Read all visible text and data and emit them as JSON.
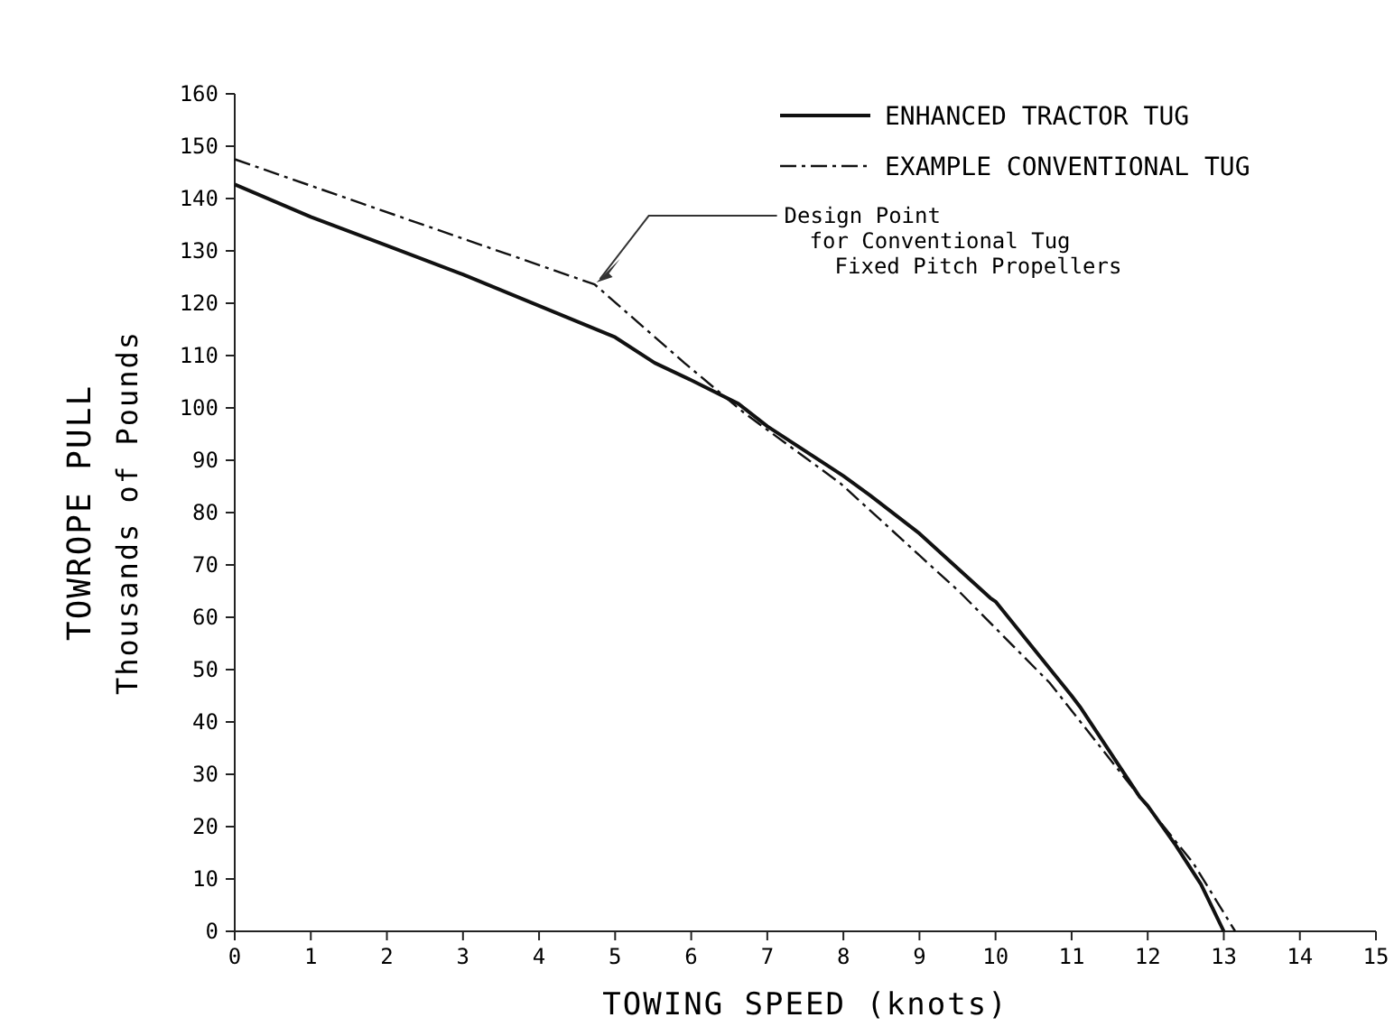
{
  "chart_data": {
    "type": "line",
    "xlabel": "TOWING SPEED (knots)",
    "ylabel": "TOWROPE PULL\nThousands of Pounds",
    "xlim": [
      0,
      15
    ],
    "xticks": [
      0,
      1,
      2,
      3,
      4,
      5,
      6,
      7,
      8,
      9,
      10,
      11,
      12,
      13,
      14,
      15
    ],
    "ylim": [
      0,
      160
    ],
    "yticks": [
      0,
      10,
      20,
      30,
      40,
      50,
      60,
      70,
      80,
      90,
      100,
      110,
      120,
      130,
      140,
      150,
      160
    ],
    "grid": false,
    "legend": "top right",
    "series": [
      {
        "name": "ENHANCED TRACTOR TUG",
        "color": "#111111",
        "line_style": "solid",
        "x": [
          0,
          1,
          2,
          3,
          4,
          5,
          5.52,
          6,
          6.62,
          7,
          8,
          8.35,
          9,
          9.93,
          10,
          11,
          11.11,
          11.9,
          12,
          12.37,
          12.7,
          13
        ],
        "values": [
          142.7,
          136.5,
          131,
          125.5,
          119.5,
          113.5,
          108.6,
          105.3,
          100.8,
          96.5,
          87,
          83.3,
          76,
          63.7,
          63,
          45,
          42.9,
          25.6,
          24,
          16.4,
          9,
          0
        ]
      },
      {
        "name": "EXAMPLE CONVENTIONAL TUG",
        "color": "#111111",
        "line_style": "dashed",
        "x": [
          0,
          4.73,
          5.91,
          6.7,
          7.96,
          9.53,
          10.71,
          11.9,
          12.6,
          13.15
        ],
        "values": [
          147.5,
          123.6,
          108.6,
          99,
          85.6,
          64.8,
          47.5,
          25.6,
          13,
          0
        ]
      }
    ],
    "annotations": [
      {
        "text": "Design Point\nfor Conventional Tug\nFixed Pitch Propellers",
        "x": 4.73,
        "y": 123.6
      }
    ]
  }
}
